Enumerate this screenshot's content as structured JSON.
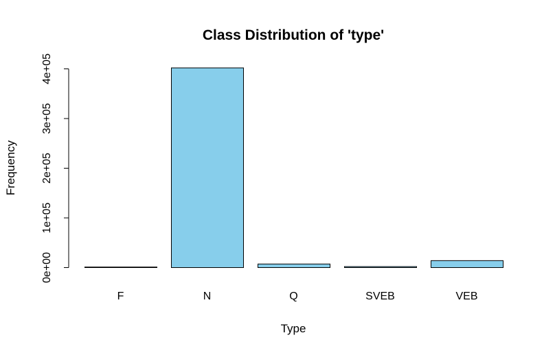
{
  "chart_data": {
    "type": "bar",
    "title": "Class Distribution of 'type'",
    "xlabel": "Type",
    "ylabel": "Frequency",
    "categories": [
      "F",
      "N",
      "Q",
      "SVEB",
      "VEB"
    ],
    "values": [
      800,
      402000,
      7200,
      2000,
      14000
    ],
    "ylim": [
      0,
      400000
    ],
    "yticks": [
      0,
      100000,
      200000,
      300000,
      400000
    ],
    "ytick_labels": [
      "0e+00",
      "1e+05",
      "2e+05",
      "3e+05",
      "4e+05"
    ],
    "bar_color": "#87CEEB",
    "bar_border_color": "#000000",
    "grid": false,
    "legend": "none"
  }
}
